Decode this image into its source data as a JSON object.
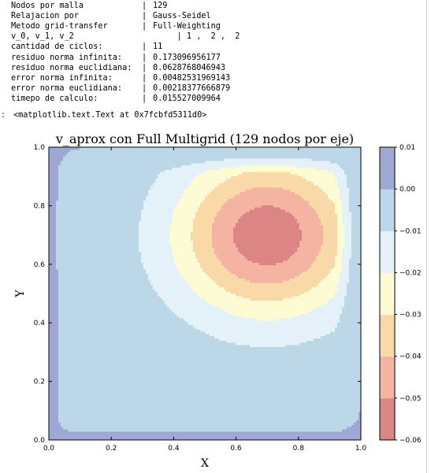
{
  "console": {
    "rows": [
      {
        "key": "Nodos por malla",
        "sep": "|",
        "value": "129"
      },
      {
        "key": "Relajacion por",
        "sep": "|",
        "value": "Gauss-Seidel"
      },
      {
        "key": "Metodo grid-transfer",
        "sep": "|",
        "value": "Full-Weighting"
      },
      {
        "key": "v_0, v_1, v_2",
        "sep": "",
        "value": "     | 1 ,  2 ,  2"
      },
      {
        "key": "cantidad de ciclos:",
        "sep": "|",
        "value": "11"
      },
      {
        "key": "residuo norma infinita:",
        "sep": "|",
        "value": "0.173096956177"
      },
      {
        "key": "residuo norma euclidiana:",
        "sep": "|",
        "value": "0.0628768046943"
      },
      {
        "key": "error norma infinita:",
        "sep": "|",
        "value": "0.00482531969143"
      },
      {
        "key": "error norma euclidiana:",
        "sep": "|",
        "value": "0.00218377666879"
      },
      {
        "key": "timepo de calculo:",
        "sep": "|",
        "value": "0.015527009964"
      }
    ],
    "out_prompt": ":",
    "out_text": "<matplotlib.text.Text at 0x7fcbfd5311d0>"
  },
  "chart_data": {
    "type": "contourf",
    "title": "v_aprox con Full Multigrid (129 nodos por eje)",
    "xlabel": "X",
    "ylabel": "Y",
    "xlim": [
      0.0,
      1.0
    ],
    "ylim": [
      0.0,
      1.0
    ],
    "x_ticks": [
      "0.0",
      "0.2",
      "0.4",
      "0.6",
      "0.8",
      "1.0"
    ],
    "y_ticks": [
      "0.0",
      "0.2",
      "0.4",
      "0.6",
      "0.8",
      "1.0"
    ],
    "colorbar": {
      "levels": [
        -0.06,
        -0.05,
        -0.04,
        -0.03,
        -0.02,
        -0.01,
        0.0,
        0.01
      ],
      "tick_labels": [
        "−0.06",
        "−0.05",
        "−0.04",
        "−0.03",
        "−0.02",
        "−0.01",
        "0.00",
        "0.01"
      ],
      "colors": [
        "#dc8585",
        "#f5b4a2",
        "#fad9a9",
        "#fcfbd4",
        "#e4f1f8",
        "#bcd7e7",
        "#9fa8d4"
      ]
    },
    "field": {
      "minimum_location": [
        0.7,
        0.7
      ],
      "minimum_value": -0.0545,
      "boundary_value": 0.0,
      "low_edge_band": "near x=0 and y=0, value 0.00 to 0.01"
    }
  }
}
